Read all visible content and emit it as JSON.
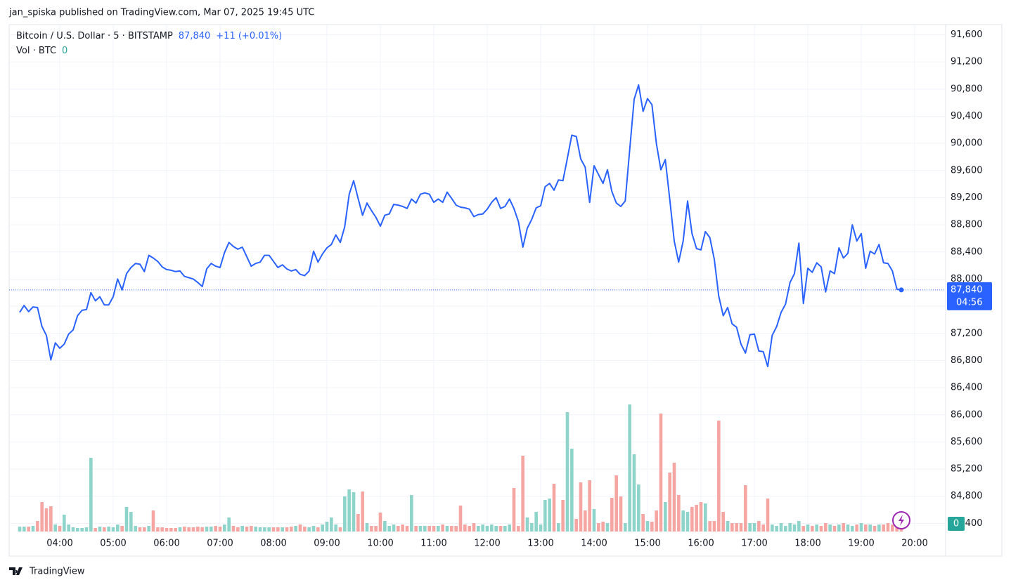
{
  "header": {
    "text": "jan_spiska published on TradingView.com, Mar 07, 2025 19:45 UTC"
  },
  "footer": {
    "brand": "TradingView"
  },
  "chart_data": {
    "type": "line",
    "title": "Bitcoin / U.S. Dollar · 5 · BITSTAMP",
    "last_value": {
      "value": 87840,
      "label": "87,840"
    },
    "change": "+11 (+0.01%)",
    "countdown": "04:56",
    "volume_last": 0,
    "grid": true,
    "x": [
      "03:15",
      "03:20",
      "03:25",
      "03:30",
      "03:35",
      "03:40",
      "03:45",
      "03:50",
      "03:55",
      "04:00",
      "04:05",
      "04:10",
      "04:15",
      "04:20",
      "04:25",
      "04:30",
      "04:35",
      "04:40",
      "04:45",
      "04:50",
      "04:55",
      "05:00",
      "05:05",
      "05:10",
      "05:15",
      "05:20",
      "05:25",
      "05:30",
      "05:35",
      "05:40",
      "05:45",
      "05:50",
      "05:55",
      "06:00",
      "06:05",
      "06:10",
      "06:15",
      "06:20",
      "06:25",
      "06:30",
      "06:35",
      "06:40",
      "06:45",
      "06:50",
      "06:55",
      "07:00",
      "07:05",
      "07:10",
      "07:15",
      "07:20",
      "07:25",
      "07:30",
      "07:35",
      "07:40",
      "07:45",
      "07:50",
      "07:55",
      "08:00",
      "08:05",
      "08:10",
      "08:15",
      "08:20",
      "08:25",
      "08:30",
      "08:35",
      "08:40",
      "08:45",
      "08:50",
      "08:55",
      "09:00",
      "09:05",
      "09:10",
      "09:15",
      "09:20",
      "09:25",
      "09:30",
      "09:35",
      "09:40",
      "09:45",
      "09:50",
      "09:55",
      "10:00",
      "10:05",
      "10:10",
      "10:15",
      "10:20",
      "10:25",
      "10:30",
      "10:35",
      "10:40",
      "10:45",
      "10:50",
      "10:55",
      "11:00",
      "11:05",
      "11:10",
      "11:15",
      "11:20",
      "11:25",
      "11:30",
      "11:35",
      "11:40",
      "11:45",
      "11:50",
      "11:55",
      "12:00",
      "12:05",
      "12:10",
      "12:15",
      "12:20",
      "12:25",
      "12:30",
      "12:35",
      "12:40",
      "12:45",
      "12:50",
      "12:55",
      "13:00",
      "13:05",
      "13:10",
      "13:15",
      "13:20",
      "13:25",
      "13:30",
      "13:35",
      "13:40",
      "13:45",
      "13:50",
      "13:55",
      "14:00",
      "14:05",
      "14:10",
      "14:15",
      "14:20",
      "14:25",
      "14:30",
      "14:35",
      "14:40",
      "14:45",
      "14:50",
      "14:55",
      "15:00",
      "15:05",
      "15:10",
      "15:15",
      "15:20",
      "15:25",
      "15:30",
      "15:35",
      "15:40",
      "15:45",
      "15:50",
      "15:55",
      "16:00",
      "16:05",
      "16:10",
      "16:15",
      "16:20",
      "16:25",
      "16:30",
      "16:35",
      "16:40",
      "16:45",
      "16:50",
      "16:55",
      "17:00",
      "17:05",
      "17:10",
      "17:15",
      "17:20",
      "17:25",
      "17:30",
      "17:35",
      "17:40",
      "17:45",
      "17:50",
      "17:55",
      "18:00",
      "18:05",
      "18:10",
      "18:15",
      "18:20",
      "18:25",
      "18:30",
      "18:35",
      "18:40",
      "18:45",
      "18:50",
      "18:55",
      "19:00",
      "19:05",
      "19:10",
      "19:15",
      "19:20",
      "19:25",
      "19:30",
      "19:35",
      "19:40",
      "19:45"
    ],
    "series": [
      {
        "name": "Bitcoin / U.S. Dollar · 5 · BITSTAMP",
        "color": "#2962ff",
        "values": [
          87510,
          87610,
          87520,
          87590,
          87580,
          87300,
          87170,
          86810,
          87060,
          86980,
          87040,
          87190,
          87250,
          87460,
          87540,
          87550,
          87800,
          87680,
          87740,
          87620,
          87620,
          87740,
          88000,
          87840,
          88080,
          88170,
          88230,
          88220,
          88110,
          88350,
          88310,
          88260,
          88180,
          88140,
          88130,
          88110,
          88120,
          88040,
          88020,
          88000,
          87950,
          87890,
          88150,
          88230,
          88190,
          88170,
          88390,
          88540,
          88480,
          88440,
          88470,
          88330,
          88190,
          88230,
          88250,
          88350,
          88350,
          88260,
          88170,
          88210,
          88150,
          88120,
          88140,
          88070,
          88050,
          88120,
          88410,
          88250,
          88370,
          88460,
          88510,
          88650,
          88540,
          88770,
          89250,
          89450,
          89190,
          88940,
          89120,
          89010,
          88910,
          88780,
          88940,
          88960,
          89100,
          89090,
          89070,
          89040,
          89180,
          89120,
          89250,
          89270,
          89250,
          89130,
          89180,
          89130,
          89280,
          89190,
          89090,
          89060,
          89050,
          89030,
          88920,
          88950,
          88960,
          89030,
          89130,
          89200,
          89040,
          89070,
          89180,
          89040,
          88850,
          88470,
          88750,
          88880,
          89050,
          89080,
          89360,
          89410,
          89310,
          89460,
          89450,
          89780,
          90120,
          90100,
          89770,
          89650,
          89130,
          89670,
          89540,
          89410,
          89610,
          89290,
          89120,
          89070,
          89150,
          89910,
          90650,
          90860,
          90470,
          90660,
          90570,
          89990,
          89610,
          89760,
          89170,
          88560,
          88250,
          88560,
          89150,
          88670,
          88450,
          88430,
          88700,
          88610,
          88290,
          87750,
          87460,
          87580,
          87340,
          87290,
          87040,
          86910,
          87180,
          87190,
          86940,
          86930,
          86710,
          87170,
          87300,
          87510,
          87630,
          87950,
          88080,
          88530,
          87640,
          88160,
          88100,
          88240,
          88180,
          87810,
          88120,
          88080,
          88460,
          88310,
          88380,
          88800,
          88560,
          88670,
          88160,
          88410,
          88370,
          88510,
          88240,
          88230,
          88120,
          87850,
          87840
        ]
      },
      {
        "name": "Vol · BTC",
        "type": "bar",
        "up_color": "#8fd4cb",
        "down_color": "#f5a6a3",
        "values": [
          7,
          7,
          7,
          8,
          15,
          42,
          33,
          36,
          10,
          8,
          24,
          10,
          6,
          5,
          5,
          6,
          105,
          5,
          7,
          6,
          7,
          6,
          10,
          8,
          35,
          28,
          8,
          6,
          6,
          8,
          30,
          6,
          6,
          5,
          5,
          5,
          6,
          7,
          6,
          6,
          7,
          6,
          7,
          7,
          8,
          7,
          10,
          20,
          8,
          6,
          8,
          7,
          8,
          7,
          6,
          6,
          6,
          6,
          6,
          6,
          6,
          7,
          8,
          10,
          7,
          6,
          8,
          6,
          10,
          14,
          20,
          10,
          6,
          50,
          60,
          56,
          25,
          57,
          12,
          8,
          8,
          27,
          15,
          8,
          10,
          8,
          10,
          8,
          52,
          8,
          8,
          8,
          8,
          8,
          8,
          10,
          8,
          8,
          8,
          37,
          10,
          8,
          12,
          8,
          10,
          8,
          10,
          8,
          8,
          8,
          10,
          62,
          8,
          108,
          20,
          12,
          28,
          10,
          45,
          47,
          68,
          12,
          45,
          170,
          118,
          18,
          70,
          30,
          73,
          32,
          12,
          14,
          12,
          48,
          80,
          50,
          12,
          181,
          110,
          67,
          25,
          15,
          14,
          30,
          168,
          42,
          84,
          98,
          52,
          30,
          28,
          35,
          38,
          42,
          40,
          15,
          15,
          158,
          28,
          15,
          12,
          12,
          12,
          66,
          12,
          12,
          15,
          10,
          47,
          10,
          8,
          12,
          8,
          12,
          10,
          15,
          8,
          10,
          8,
          10,
          8,
          12,
          10,
          8,
          10,
          12,
          10,
          8,
          10,
          12,
          10,
          10,
          8,
          10,
          10,
          12,
          10,
          10,
          6
        ]
      }
    ],
    "ylim": [
      84280,
      91750
    ],
    "yticks": [
      {
        "value": 84400,
        "label": "84,400"
      },
      {
        "value": 84800,
        "label": "84,800"
      },
      {
        "value": 85200,
        "label": "85,200"
      },
      {
        "value": 85600,
        "label": "85,600"
      },
      {
        "value": 86000,
        "label": "86,000"
      },
      {
        "value": 86400,
        "label": "86,400"
      },
      {
        "value": 86800,
        "label": "86,800"
      },
      {
        "value": 87200,
        "label": "87,200"
      },
      {
        "value": 87600,
        "label": "87,600"
      },
      {
        "value": 88000,
        "label": "88,000"
      },
      {
        "value": 88400,
        "label": "88,400"
      },
      {
        "value": 88800,
        "label": "88,800"
      },
      {
        "value": 89200,
        "label": "89,200"
      },
      {
        "value": 89600,
        "label": "89,600"
      },
      {
        "value": 90000,
        "label": "90,000"
      },
      {
        "value": 90400,
        "label": "90,400"
      },
      {
        "value": 90800,
        "label": "90,800"
      },
      {
        "value": 91200,
        "label": "91,200"
      },
      {
        "value": 91600,
        "label": "91,600"
      }
    ],
    "xticks": [
      "04:00",
      "05:00",
      "06:00",
      "07:00",
      "08:00",
      "09:00",
      "10:00",
      "11:00",
      "12:00",
      "13:00",
      "14:00",
      "15:00",
      "16:00",
      "17:00",
      "18:00",
      "19:00",
      "20:00"
    ]
  }
}
